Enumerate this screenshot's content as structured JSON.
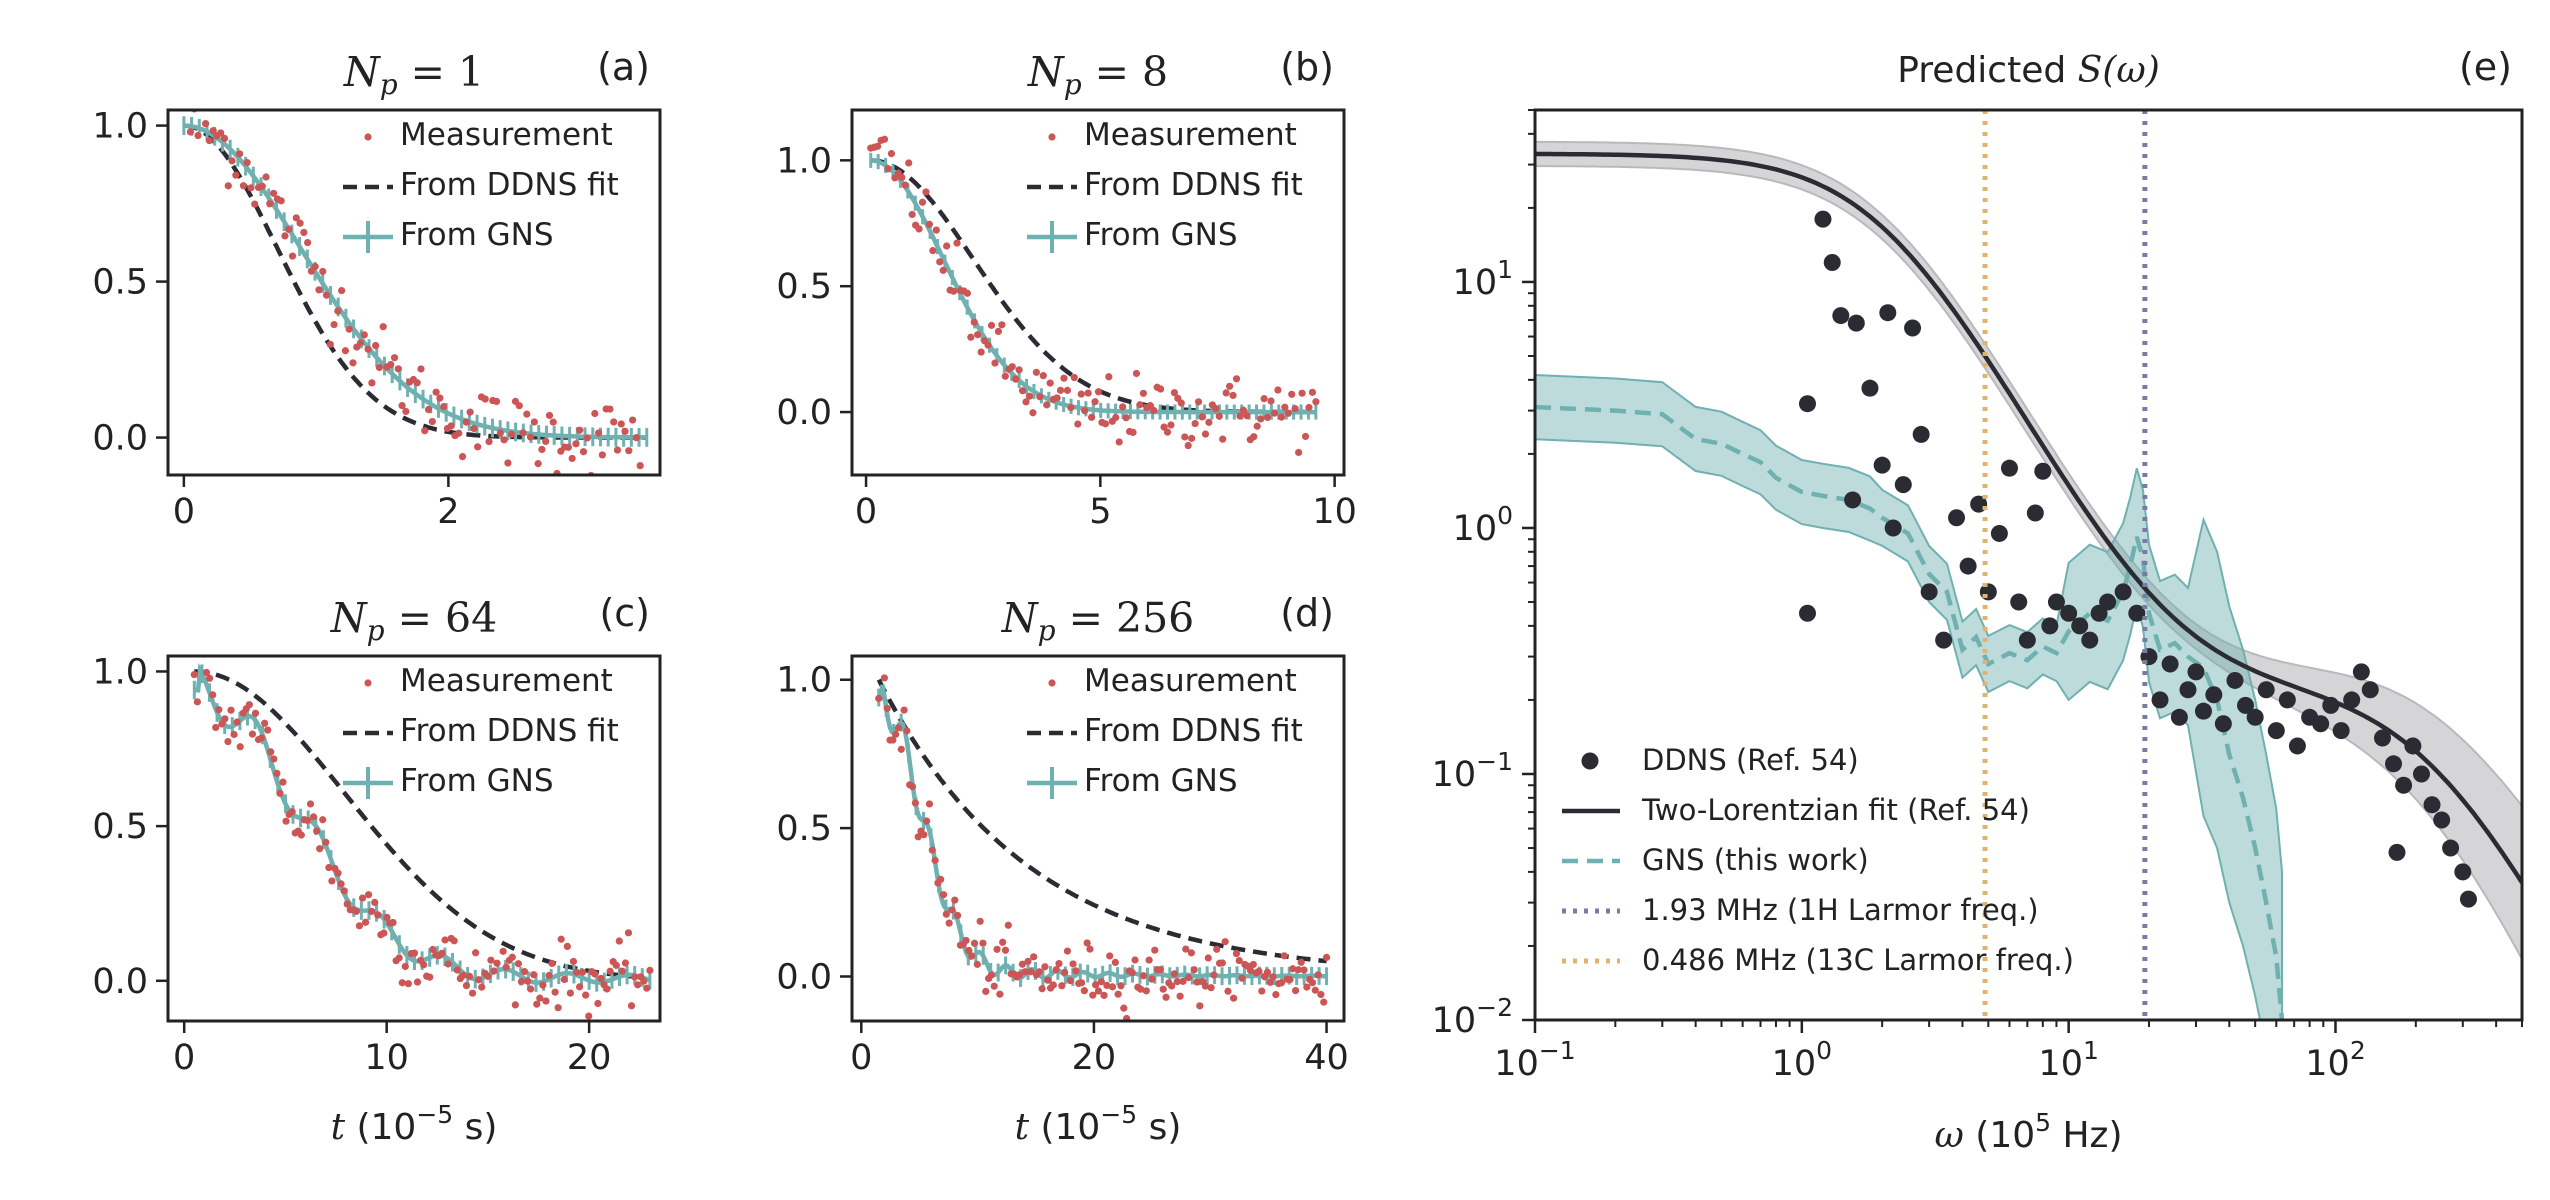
{
  "colors": {
    "measurement": "#cc5555",
    "ddns_fit": "#2b2b33",
    "gns": "#6fb0b0",
    "larmor_1h": "#7a7aa8",
    "larmor_13c": "#e2b36f",
    "band_gray": "#b9b9bd"
  },
  "chart_data": [
    {
      "id": "a",
      "type": "line",
      "tag": "(a)",
      "title": "N_p = 1",
      "title_parts": {
        "symbol": "N",
        "sub": "p",
        "rest": " = 1"
      },
      "xlabel": "",
      "ylabel": "",
      "xlim": [
        -0.12,
        3.6
      ],
      "ylim": [
        -0.12,
        1.05
      ],
      "xticks": [
        0,
        2
      ],
      "xtick_labels": [
        "0",
        "2"
      ],
      "yticks": [
        0.0,
        0.5,
        1.0
      ],
      "ytick_labels": [
        "0.0",
        "0.5",
        "1.0"
      ],
      "legend": [
        "Measurement",
        "From DDNS fit",
        "From GNS"
      ],
      "series": [
        {
          "name": "From DDNS fit",
          "kind": "dashed",
          "model": "gauss",
          "tau": 1.0,
          "x0": 0,
          "x1": 3.5
        },
        {
          "name": "From GNS",
          "kind": "solid",
          "model": "gauss",
          "tau": 1.25,
          "x0": 0,
          "x1": 3.5
        },
        {
          "name": "Measurement",
          "kind": "scatter",
          "n": 120,
          "x0": 0.05,
          "x1": 3.45,
          "tau": 1.15,
          "noise": 0.06
        }
      ]
    },
    {
      "id": "b",
      "type": "line",
      "tag": "(b)",
      "title": "N_p = 8",
      "title_parts": {
        "symbol": "N",
        "sub": "p",
        "rest": " = 8"
      },
      "xlabel": "",
      "ylabel": "",
      "xlim": [
        -0.3,
        10.2
      ],
      "ylim": [
        -0.25,
        1.2
      ],
      "xticks": [
        0,
        5,
        10
      ],
      "xtick_labels": [
        "0",
        "5",
        "10"
      ],
      "yticks": [
        0.0,
        0.5,
        1.0
      ],
      "ytick_labels": [
        "0.0",
        "0.5",
        "1.0"
      ],
      "legend": [
        "Measurement",
        "From DDNS fit",
        "From GNS"
      ],
      "series": [
        {
          "name": "From DDNS fit",
          "kind": "dashed",
          "model": "gauss",
          "tau": 3.1,
          "x0": 0.1,
          "x1": 9.6
        },
        {
          "name": "From GNS",
          "kind": "solid",
          "model": "gauss",
          "tau": 2.2,
          "x0": 0.1,
          "x1": 9.6
        },
        {
          "name": "Measurement",
          "kind": "scatter",
          "n": 130,
          "x0": 0.1,
          "x1": 9.6,
          "tau": 2.5,
          "noise": 0.07
        }
      ]
    },
    {
      "id": "c",
      "type": "line",
      "tag": "(c)",
      "title": "N_p = 64",
      "title_parts": {
        "symbol": "N",
        "sub": "p",
        "rest": " = 64"
      },
      "xlabel": "",
      "ylabel": "",
      "xlim": [
        -0.8,
        23.5
      ],
      "ylim": [
        -0.13,
        1.05
      ],
      "xticks": [
        0,
        10,
        20
      ],
      "xtick_labels": [
        "0",
        "10",
        "20"
      ],
      "yticks": [
        0.0,
        0.5,
        1.0
      ],
      "ytick_labels": [
        "0.0",
        "0.5",
        "1.0"
      ],
      "legend": [
        "Measurement",
        "From DDNS fit",
        "From GNS"
      ],
      "series": [
        {
          "name": "From DDNS fit",
          "kind": "dashed",
          "model": "gauss",
          "tau": 10.5,
          "x0": 0.5,
          "x1": 23
        },
        {
          "name": "From GNS",
          "kind": "solid",
          "model": "wiggle",
          "tau": 7.0,
          "x0": 0.5,
          "x1": 23
        },
        {
          "name": "Measurement",
          "kind": "scatter",
          "n": 150,
          "x0": 0.5,
          "x1": 23,
          "tau": 7.5,
          "noise": 0.05
        }
      ]
    },
    {
      "id": "d",
      "type": "line",
      "tag": "(d)",
      "title": "N_p = 256",
      "title_parts": {
        "symbol": "N",
        "sub": "p",
        "rest": " = 256"
      },
      "xlabel": "",
      "ylabel": "",
      "xlim": [
        -0.8,
        41.5
      ],
      "ylim": [
        -0.15,
        1.08
      ],
      "xticks": [
        0,
        20,
        40
      ],
      "xtick_labels": [
        "0",
        "20",
        "40"
      ],
      "yticks": [
        0.0,
        0.5,
        1.0
      ],
      "ytick_labels": [
        "0.0",
        "0.5",
        "1.0"
      ],
      "legend": [
        "Measurement",
        "From DDNS fit",
        "From GNS"
      ],
      "series": [
        {
          "name": "From DDNS fit",
          "kind": "dashed",
          "model": "exp",
          "tau": 13.0,
          "x0": 1.5,
          "x1": 40
        },
        {
          "name": "From GNS",
          "kind": "solid",
          "model": "wiggle",
          "tau": 5.0,
          "x0": 1.5,
          "x1": 40
        },
        {
          "name": "Measurement",
          "kind": "scatter",
          "n": 160,
          "x0": 1.5,
          "x1": 40,
          "tau": 6.0,
          "noise": 0.05
        }
      ]
    },
    {
      "id": "e",
      "type": "line",
      "tag": "(e)",
      "title": "Predicted S(ω)",
      "title_parts": {
        "lead": "Predicted ",
        "symbol": "S(ω)"
      },
      "xlabel": "ω (10⁵ Hz)",
      "xlabel_parts": {
        "sym": "ω",
        "pre": " (10",
        "sup": "5",
        "post": " Hz)"
      },
      "ylabel": "",
      "xscale": "log",
      "yscale": "log",
      "xlim": [
        0.1,
        500
      ],
      "ylim": [
        0.01,
        50
      ],
      "xticks": [
        0.1,
        1,
        10,
        100
      ],
      "xtick_labels": [
        [
          "10",
          "−1"
        ],
        [
          "10",
          "0"
        ],
        [
          "10",
          "1"
        ],
        [
          "10",
          "2"
        ]
      ],
      "yticks": [
        0.01,
        0.1,
        1,
        10
      ],
      "ytick_labels": [
        [
          "10",
          "−2"
        ],
        [
          "10",
          "−1"
        ],
        [
          "10",
          "0"
        ],
        [
          "10",
          "1"
        ]
      ],
      "legend": [
        "DDNS (Ref. 54)",
        "Two-Lorentzian fit (Ref. 54)",
        "GNS (this work)",
        "1.93 MHz (1H Larmor freq.)",
        "0.486 MHz (13C Larmor freq.)"
      ],
      "vlines": [
        {
          "name": "1.93 MHz (1H Larmor freq.)",
          "x": 19.3
        },
        {
          "name": "0.486 MHz (13C Larmor freq.)",
          "x": 4.86
        }
      ],
      "fit": {
        "a1": 33,
        "w1": 2.0,
        "a2": 0.22,
        "w2": 220
      },
      "ddns_points": [
        [
          1.05,
          0.45
        ],
        [
          1.05,
          3.2
        ],
        [
          1.2,
          18
        ],
        [
          1.3,
          12
        ],
        [
          1.4,
          7.3
        ],
        [
          1.55,
          1.3
        ],
        [
          1.6,
          6.8
        ],
        [
          1.8,
          3.7
        ],
        [
          2.0,
          1.8
        ],
        [
          2.1,
          7.5
        ],
        [
          2.2,
          1.0
        ],
        [
          2.4,
          1.5
        ],
        [
          2.6,
          6.5
        ],
        [
          2.8,
          2.4
        ],
        [
          3.0,
          0.55
        ],
        [
          3.4,
          0.35
        ],
        [
          3.8,
          1.1
        ],
        [
          4.2,
          0.7
        ],
        [
          4.6,
          1.25
        ],
        [
          5.0,
          0.55
        ],
        [
          5.5,
          0.95
        ],
        [
          6.0,
          1.75
        ],
        [
          6.5,
          0.5
        ],
        [
          7.0,
          0.35
        ],
        [
          7.5,
          1.15
        ],
        [
          8.0,
          1.7
        ],
        [
          8.5,
          0.4
        ],
        [
          9.0,
          0.5
        ],
        [
          10,
          0.45
        ],
        [
          11,
          0.4
        ],
        [
          12,
          0.35
        ],
        [
          13,
          0.45
        ],
        [
          14,
          0.5
        ],
        [
          16,
          0.55
        ],
        [
          18,
          0.45
        ],
        [
          20,
          0.3
        ],
        [
          22,
          0.2
        ],
        [
          24,
          0.28
        ],
        [
          26,
          0.17
        ],
        [
          28,
          0.22
        ],
        [
          30,
          0.26
        ],
        [
          32,
          0.18
        ],
        [
          35,
          0.21
        ],
        [
          38,
          0.16
        ],
        [
          42,
          0.24
        ],
        [
          46,
          0.19
        ],
        [
          50,
          0.17
        ],
        [
          55,
          0.22
        ],
        [
          60,
          0.15
        ],
        [
          66,
          0.2
        ],
        [
          72,
          0.13
        ],
        [
          80,
          0.17
        ],
        [
          88,
          0.16
        ],
        [
          96,
          0.19
        ],
        [
          105,
          0.15
        ],
        [
          115,
          0.2
        ],
        [
          125,
          0.26
        ],
        [
          135,
          0.22
        ],
        [
          150,
          0.14
        ],
        [
          165,
          0.11
        ],
        [
          180,
          0.09
        ],
        [
          195,
          0.13
        ],
        [
          210,
          0.1
        ],
        [
          230,
          0.075
        ],
        [
          250,
          0.065
        ],
        [
          270,
          0.05
        ],
        [
          300,
          0.04
        ],
        [
          170,
          0.048
        ],
        [
          315,
          0.031
        ]
      ],
      "gns_curve": [
        [
          0.1,
          3.1
        ],
        [
          0.2,
          3.0
        ],
        [
          0.3,
          2.9
        ],
        [
          0.4,
          2.3
        ],
        [
          0.5,
          2.2
        ],
        [
          0.6,
          2.0
        ],
        [
          0.7,
          1.85
        ],
        [
          0.8,
          1.6
        ],
        [
          1.0,
          1.4
        ],
        [
          1.2,
          1.35
        ],
        [
          1.5,
          1.3
        ],
        [
          1.8,
          1.2
        ],
        [
          2.0,
          1.1
        ],
        [
          2.5,
          0.95
        ],
        [
          3.0,
          0.65
        ],
        [
          3.5,
          0.55
        ],
        [
          4.0,
          0.32
        ],
        [
          4.5,
          0.36
        ],
        [
          5.0,
          0.28
        ],
        [
          6.0,
          0.31
        ],
        [
          7.0,
          0.29
        ],
        [
          8.0,
          0.33
        ],
        [
          9.0,
          0.31
        ],
        [
          10,
          0.38
        ],
        [
          12,
          0.45
        ],
        [
          14,
          0.42
        ],
        [
          16,
          0.55
        ],
        [
          17,
          0.7
        ],
        [
          18,
          0.92
        ],
        [
          19,
          0.75
        ],
        [
          20,
          0.45
        ],
        [
          22,
          0.32
        ],
        [
          25,
          0.34
        ],
        [
          28,
          0.3
        ],
        [
          32,
          0.27
        ],
        [
          36,
          0.2
        ],
        [
          40,
          0.12
        ],
        [
          45,
          0.08
        ],
        [
          50,
          0.05
        ],
        [
          55,
          0.03
        ],
        [
          60,
          0.018
        ],
        [
          63,
          0.01
        ]
      ]
    }
  ]
}
